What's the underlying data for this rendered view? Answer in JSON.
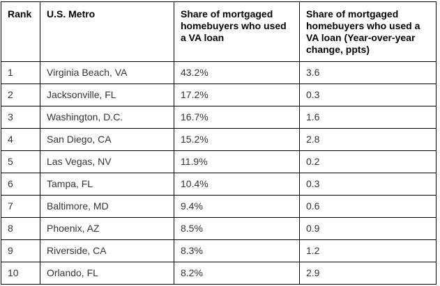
{
  "colors": {
    "border": "#000000",
    "header_text": "#000000",
    "cell_text": "#333333",
    "background": "#ffffff"
  },
  "chart_data": {
    "type": "table",
    "title": "",
    "columns": [
      "Rank",
      "U.S. Metro",
      "Share of mortgaged homebuyers who used a VA loan",
      "Share of mortgaged homebuyers who used a VA loan (Year-over-year change, ppts)"
    ],
    "rows": [
      [
        "1",
        "Virginia Beach, VA",
        "43.2%",
        "3.6"
      ],
      [
        "2",
        "Jacksonville, FL",
        "17.2%",
        "0.3"
      ],
      [
        "3",
        "Washington, D.C.",
        "16.7%",
        "1.6"
      ],
      [
        "4",
        "San Diego, CA",
        "15.2%",
        "2.8"
      ],
      [
        "5",
        "Las Vegas, NV",
        "11.9%",
        "0.2"
      ],
      [
        "6",
        "Tampa, FL",
        "10.4%",
        "0.3"
      ],
      [
        "7",
        "Baltimore, MD",
        "9.4%",
        "0.6"
      ],
      [
        "8",
        "Phoenix, AZ",
        "8.5%",
        "0.9"
      ],
      [
        "9",
        "Riverside, CA",
        "8.3%",
        "1.2"
      ],
      [
        "10",
        "Orlando, FL",
        "8.2%",
        "2.9"
      ]
    ],
    "share_values_pct": [
      43.2,
      17.2,
      16.7,
      15.2,
      11.9,
      10.4,
      9.4,
      8.5,
      8.3,
      8.2
    ],
    "yoy_change_ppts": [
      3.6,
      0.3,
      1.6,
      2.8,
      0.2,
      0.3,
      0.6,
      0.9,
      1.2,
      2.9
    ]
  }
}
